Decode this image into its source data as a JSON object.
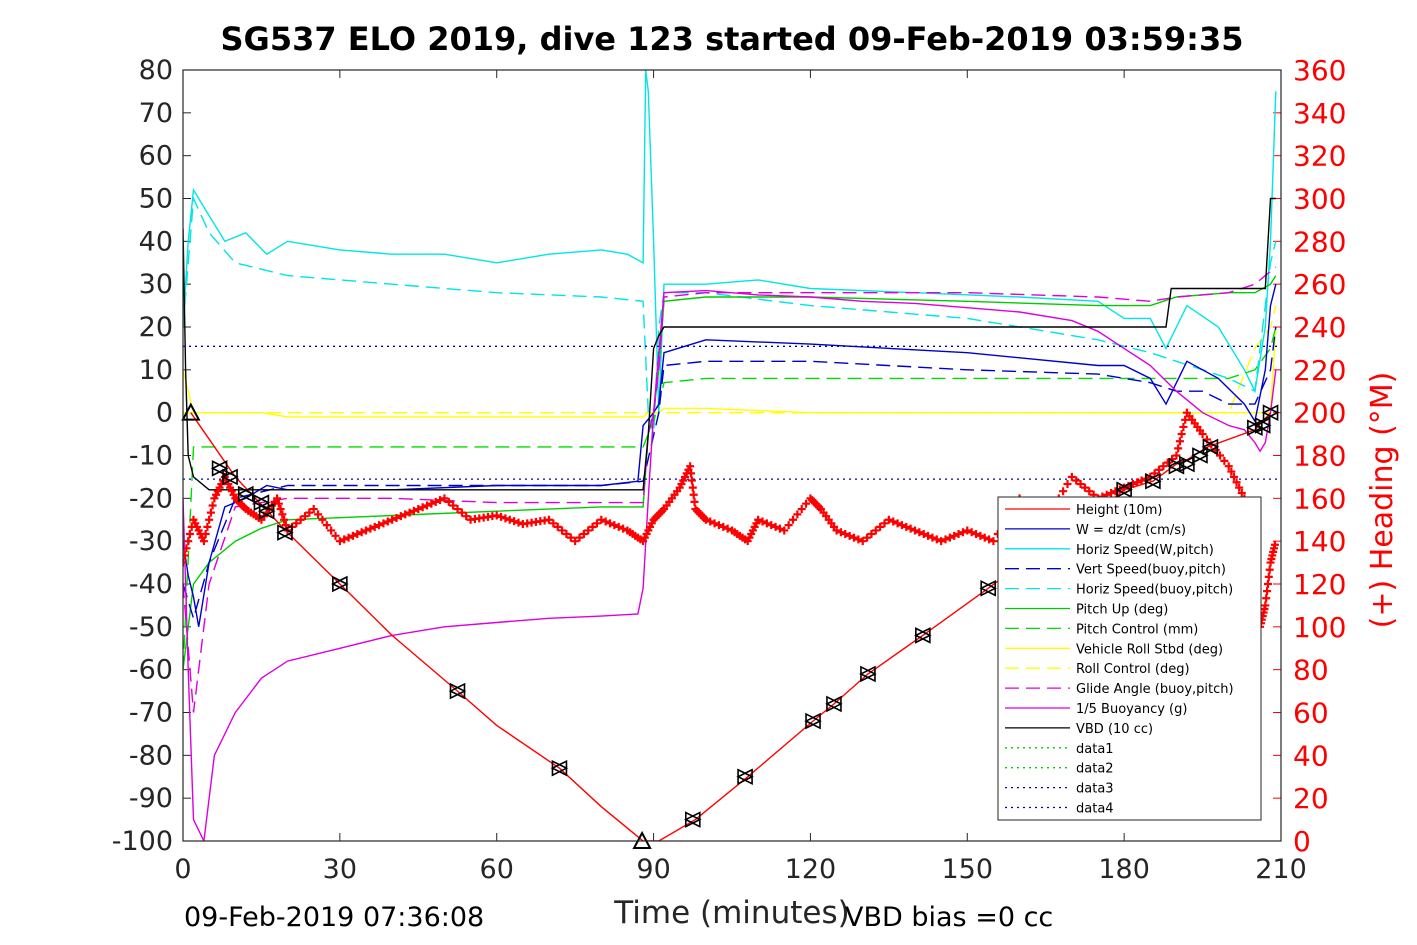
{
  "colors": {
    "height": "#ff0000",
    "w": "#0000cc",
    "horiz_speed": "#00e5e5",
    "vert_speed_buoy": "#0000cc",
    "horiz_speed_buoy": "#00e5e5",
    "pitch_up": "#00cc00",
    "pitch_control": "#00dd00",
    "roll": "#ffff00",
    "roll_control": "#ffff00",
    "glide_angle": "#dd00dd",
    "buoyancy": "#dd00dd",
    "vbd": "#000000",
    "data12": "#00cc00",
    "data34": "#0000aa",
    "heading": "#ff0000"
  },
  "chart_data": {
    "type": "line",
    "title": "SG537 ELO 2019, dive 123 started 09-Feb-2019 03:59:35",
    "xlabel": "Time (minutes)",
    "ylabel_right": "(+) Heading (°M)",
    "footer_left": "09-Feb-2019 07:36:08",
    "footer_right": "VBD bias =0 cc",
    "xlim": [
      0,
      210
    ],
    "ylim": [
      -100,
      80
    ],
    "ylim_right": [
      0,
      360
    ],
    "x_ticks": [
      "0",
      "30",
      "60",
      "90",
      "120",
      "150",
      "180",
      "210"
    ],
    "y_ticks": [
      "80",
      "70",
      "60",
      "50",
      "40",
      "30",
      "20",
      "10",
      "0",
      "-10",
      "-20",
      "-30",
      "-40",
      "-50",
      "-60",
      "-70",
      "-80",
      "-90",
      "-100"
    ],
    "y_ticks_right": [
      "360",
      "340",
      "320",
      "300",
      "280",
      "260",
      "240",
      "220",
      "200",
      "180",
      "160",
      "140",
      "120",
      "100",
      "80",
      "60",
      "40",
      "20",
      "0"
    ],
    "legend_position": "lower-right",
    "legend": [
      "Height (10m)",
      "W = dz/dt (cm/s)",
      "Horiz Speed(W,pitch)",
      "Vert Speed(buoy,pitch)",
      "Horiz Speed(buoy,pitch)",
      "Pitch Up (deg)",
      "Pitch Control (mm)",
      "Vehicle Roll Stbd (deg)",
      "Roll Control (deg)",
      "Glide Angle (buoy,pitch)",
      "1/5 Buoyancy (g)",
      "VBD (10 cc)",
      "data1",
      "data2",
      "data3",
      "data4"
    ],
    "series": [
      {
        "name": "Height (10m)",
        "x": [
          1.5,
          10,
          20,
          30,
          40,
          52.5,
          60,
          72,
          80,
          88,
          91,
          98,
          108,
          120.5,
          124.5,
          131,
          141.5,
          154,
          165,
          176,
          180,
          185.5,
          190,
          192,
          196,
          205,
          208
        ],
        "y": [
          0,
          -15,
          -28,
          -40,
          -52,
          -65,
          -73,
          -83,
          -92,
          -100,
          -100,
          -95,
          -85,
          -72,
          -68,
          -61,
          -52,
          -41,
          -31,
          -22,
          -18,
          -16,
          -12,
          -11,
          -8,
          -4,
          0
        ]
      },
      {
        "name": "W = dz/dt (cm/s)",
        "x": [
          0,
          1,
          2,
          3,
          5,
          8,
          12,
          16,
          20,
          40,
          60,
          80,
          87,
          88,
          90,
          91,
          92,
          100,
          120,
          150,
          175,
          180,
          185,
          188,
          192,
          198,
          203,
          205,
          207,
          208,
          209
        ],
        "y": [
          -30,
          -38,
          -43,
          -50,
          -35,
          -22,
          -20,
          -17,
          -18,
          -18,
          -17,
          -17,
          -16,
          -3,
          0,
          2,
          14,
          17,
          16,
          14,
          11,
          11,
          8,
          2,
          12,
          8,
          2,
          -2,
          10,
          25,
          30
        ]
      },
      {
        "name": "Horiz Speed(W,pitch)",
        "x": [
          0,
          1,
          2,
          4,
          8,
          12,
          16,
          20,
          30,
          40,
          50,
          60,
          70,
          80,
          85,
          88,
          88.5,
          89,
          90,
          91,
          92,
          100,
          110,
          120,
          140,
          160,
          175,
          180,
          185,
          188,
          192,
          198,
          203,
          205,
          207,
          208,
          209
        ],
        "y": [
          20,
          40,
          52,
          48,
          40,
          42,
          37,
          40,
          38,
          37,
          37,
          35,
          37,
          38,
          37,
          35,
          80,
          75,
          40,
          0,
          30,
          30,
          31,
          29,
          28,
          27,
          26,
          22,
          22,
          15,
          25,
          20,
          10,
          5,
          20,
          40,
          75
        ]
      },
      {
        "name": "Vert Speed(buoy,pitch)",
        "x": [
          0,
          2,
          5,
          10,
          20,
          40,
          60,
          80,
          88,
          91,
          92,
          100,
          120,
          150,
          175,
          185,
          190,
          195,
          200,
          205,
          208,
          209
        ],
        "y": [
          -40,
          -48,
          -35,
          -20,
          -17,
          -17,
          -17,
          -17,
          -16,
          0,
          11,
          12,
          12,
          10,
          9,
          7,
          5,
          5,
          2,
          2,
          10,
          20
        ]
      },
      {
        "name": "Horiz Speed(buoy,pitch)",
        "x": [
          0,
          2,
          5,
          10,
          20,
          40,
          60,
          80,
          88,
          89,
          90,
          91,
          92,
          100,
          120,
          150,
          175,
          185,
          190,
          195,
          200,
          205,
          208,
          209
        ],
        "y": [
          20,
          50,
          42,
          35,
          32,
          30,
          28,
          27,
          26,
          0,
          -5,
          20,
          28,
          28,
          25,
          22,
          17,
          14,
          12,
          10,
          8,
          5,
          35,
          40
        ]
      },
      {
        "name": "Pitch Up (deg)",
        "x": [
          0,
          2,
          5,
          10,
          15,
          20,
          40,
          60,
          80,
          88,
          89,
          90,
          91,
          92,
          100,
          120,
          150,
          175,
          185,
          190,
          200,
          205,
          208,
          209
        ],
        "y": [
          -60,
          -40,
          -35,
          -30,
          -27,
          -25,
          -24,
          -23,
          -22,
          -22,
          -5,
          0,
          10,
          26,
          27,
          27,
          26,
          25,
          25,
          27,
          28,
          28,
          30,
          32
        ]
      },
      {
        "name": "Pitch Control (mm)",
        "x": [
          0,
          2,
          5,
          88,
          89,
          90,
          91,
          92,
          100,
          150,
          180,
          190,
          200,
          205,
          208,
          209
        ],
        "y": [
          -60,
          -8,
          -8,
          -8,
          -5,
          -2,
          2,
          7,
          8,
          8,
          8,
          8,
          8,
          10,
          15,
          20
        ]
      },
      {
        "name": "Vehicle Roll Stbd (deg)",
        "x": [
          0,
          2,
          10,
          15,
          20,
          40,
          60,
          80,
          88,
          89,
          90,
          91,
          92,
          100,
          120,
          150,
          175,
          180,
          185,
          190,
          200,
          205,
          208,
          209
        ],
        "y": [
          10,
          0,
          0,
          0,
          -1,
          -1,
          -1,
          -1,
          -1,
          0,
          0,
          0,
          1,
          1,
          0,
          0,
          0,
          0,
          0,
          0,
          0,
          0,
          0,
          20
        ]
      },
      {
        "name": "Roll Control (deg)",
        "x": [
          0,
          2,
          10,
          20,
          40,
          60,
          80,
          88,
          92,
          100,
          150,
          180,
          190,
          200,
          205,
          208,
          209
        ],
        "y": [
          0,
          0,
          0,
          0,
          0,
          0,
          0,
          0,
          0,
          0,
          0,
          0,
          0,
          0,
          15,
          20,
          25
        ]
      },
      {
        "name": "Glide Angle (buoy,pitch)",
        "x": [
          0,
          2,
          5,
          10,
          20,
          40,
          60,
          80,
          88,
          89,
          90,
          91,
          92,
          100,
          120,
          150,
          175,
          185,
          190,
          200,
          205,
          208,
          209
        ],
        "y": [
          -40,
          -70,
          -40,
          -22,
          -20,
          -20,
          -21,
          -21,
          -21,
          -5,
          0,
          10,
          27,
          28,
          28,
          28,
          27,
          26,
          27,
          28,
          30,
          33,
          34
        ]
      },
      {
        "name": "1/5 Buoyancy (g)",
        "x": [
          0,
          1,
          2,
          4,
          6,
          10,
          15,
          20,
          30,
          40,
          50,
          60,
          70,
          80,
          87,
          88,
          89,
          90,
          92,
          100,
          110,
          120,
          130,
          140,
          150,
          160,
          170,
          175,
          180,
          185,
          190,
          195,
          200,
          203,
          205,
          206,
          207,
          208,
          209
        ],
        "y": [
          -20,
          -60,
          -95,
          -100,
          -80,
          -70,
          -62,
          -58,
          -55,
          -52,
          -50,
          -49,
          -48,
          -47.5,
          -47,
          -41,
          -20,
          0,
          28,
          28.5,
          27.5,
          27,
          26,
          25.5,
          24.5,
          23.5,
          21.5,
          19,
          15,
          11,
          5,
          0,
          -3,
          -4,
          -7,
          -9,
          -7,
          0,
          10
        ]
      },
      {
        "name": "VBD (10 cc)",
        "x": [
          0,
          0.5,
          1,
          2,
          5,
          10,
          20,
          40,
          60,
          80,
          87,
          88,
          89,
          90,
          91,
          92,
          100,
          120,
          150,
          175,
          180,
          185,
          188,
          189,
          190,
          200,
          205,
          206,
          207,
          208,
          209
        ],
        "y": [
          43,
          10,
          -10,
          -15,
          -18,
          -18,
          -18,
          -18,
          -18,
          -18,
          -18,
          -18,
          -5,
          15,
          18,
          20,
          20,
          20,
          20,
          20,
          20,
          20,
          20,
          29,
          29,
          29,
          29,
          29,
          29,
          50,
          50
        ]
      },
      {
        "name": "data3",
        "x": [
          0,
          210
        ],
        "y": [
          15.5,
          15.5
        ]
      },
      {
        "name": "data4",
        "x": [
          0,
          210
        ],
        "y": [
          -15.5,
          -15.5
        ]
      },
      {
        "name": "Heading",
        "axis": "right",
        "x": [
          0,
          2,
          4,
          6,
          8,
          10,
          12,
          15,
          18,
          20,
          25,
          30,
          35,
          40,
          45,
          50,
          55,
          60,
          65,
          70,
          75,
          80,
          85,
          88,
          90,
          92,
          95,
          97,
          98,
          100,
          105,
          108,
          110,
          115,
          120,
          122,
          125,
          130,
          135,
          140,
          145,
          150,
          155,
          160,
          165,
          170,
          175,
          180,
          185,
          190,
          192,
          195,
          200,
          203,
          205,
          206,
          207,
          208,
          209
        ],
        "y": [
          130,
          150,
          140,
          160,
          170,
          160,
          155,
          150,
          160,
          145,
          155,
          140,
          145,
          150,
          155,
          160,
          150,
          152,
          148,
          150,
          140,
          150,
          145,
          140,
          150,
          155,
          165,
          175,
          155,
          150,
          145,
          140,
          150,
          145,
          160,
          155,
          145,
          140,
          150,
          145,
          140,
          145,
          140,
          160,
          150,
          170,
          160,
          165,
          170,
          180,
          200,
          190,
          175,
          160,
          120,
          100,
          110,
          130,
          140
        ]
      }
    ],
    "markers": {
      "triangle_up": [
        {
          "x": 1.5,
          "y": 0
        },
        {
          "x": 87.8,
          "y": -100
        }
      ],
      "double_triangle": [
        {
          "x": 7,
          "y": -13
        },
        {
          "x": 9,
          "y": -15
        },
        {
          "x": 12,
          "y": -19
        },
        {
          "x": 15,
          "y": -21
        },
        {
          "x": 16,
          "y": -23
        },
        {
          "x": 19.5,
          "y": -28
        },
        {
          "x": 30,
          "y": -40
        },
        {
          "x": 52.5,
          "y": -65
        },
        {
          "x": 72,
          "y": -83
        },
        {
          "x": 97.5,
          "y": -95
        },
        {
          "x": 107.5,
          "y": -85
        },
        {
          "x": 120.5,
          "y": -72
        },
        {
          "x": 124.5,
          "y": -68
        },
        {
          "x": 131,
          "y": -61
        },
        {
          "x": 141.5,
          "y": -52
        },
        {
          "x": 154,
          "y": -41
        },
        {
          "x": 180,
          "y": -18
        },
        {
          "x": 185.5,
          "y": -16
        },
        {
          "x": 190,
          "y": -12.5
        },
        {
          "x": 192,
          "y": -12
        },
        {
          "x": 194.5,
          "y": -10
        },
        {
          "x": 196.5,
          "y": -8
        },
        {
          "x": 205,
          "y": -3.5
        },
        {
          "x": 206.5,
          "y": -3
        },
        {
          "x": 208,
          "y": 0
        }
      ]
    }
  }
}
